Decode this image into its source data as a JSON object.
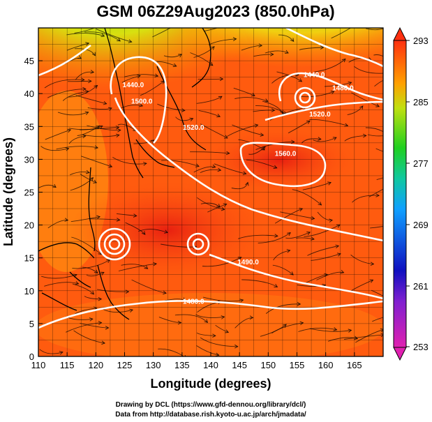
{
  "chart_data": {
    "type": "heatmap",
    "title": "GSM 06Z29Aug2023 (850.0hPa)",
    "xlabel": "Longitude (degrees)",
    "ylabel": "Latitude  (degrees)",
    "xlim": [
      110,
      170
    ],
    "ylim": [
      0,
      50
    ],
    "x_ticks": [
      "110",
      "115",
      "120",
      "125",
      "130",
      "135",
      "140",
      "145",
      "150",
      "155",
      "160",
      "165"
    ],
    "y_ticks": [
      "0",
      "5",
      "10",
      "15",
      "20",
      "25",
      "30",
      "35",
      "40",
      "45"
    ],
    "colorbar": {
      "ticks": [
        "253",
        "261",
        "269",
        "277",
        "285",
        "293"
      ],
      "min": 253,
      "max": 293,
      "colors": [
        "#e020b0",
        "#1010c0",
        "#10a0ff",
        "#20d020",
        "#ffa000",
        "#ff3010"
      ]
    },
    "contour_labels": [
      {
        "text": "1440.0",
        "lon": 126.5,
        "lat": 41.0
      },
      {
        "text": "1500.0",
        "lon": 128.0,
        "lat": 38.5
      },
      {
        "text": "1520.0",
        "lon": 137.0,
        "lat": 34.5
      },
      {
        "text": "1440.0",
        "lon": 158.0,
        "lat": 42.5
      },
      {
        "text": "1480.0",
        "lon": 163.0,
        "lat": 40.5
      },
      {
        "text": "1520.0",
        "lon": 159.0,
        "lat": 36.5
      },
      {
        "text": "1560.0",
        "lon": 153.0,
        "lat": 30.5
      },
      {
        "text": "1490.0",
        "lon": 146.5,
        "lat": 14.0
      },
      {
        "text": "1480.0",
        "lon": 137.0,
        "lat": 8.0
      }
    ],
    "vortices": [
      {
        "name": "",
        "lon": 123.0,
        "lat": 19.0
      },
      {
        "name": "",
        "lon": 137.5,
        "lat": 19.0
      },
      {
        "name": "",
        "lon": 155.5,
        "lat": 40.5
      }
    ],
    "credits": [
      "Drawing by DCL (https://www.gfd-dennou.org/library/dcl/)",
      "Data from http://database.rish.kyoto-u.ac.jp/arch/jmadata/"
    ]
  }
}
